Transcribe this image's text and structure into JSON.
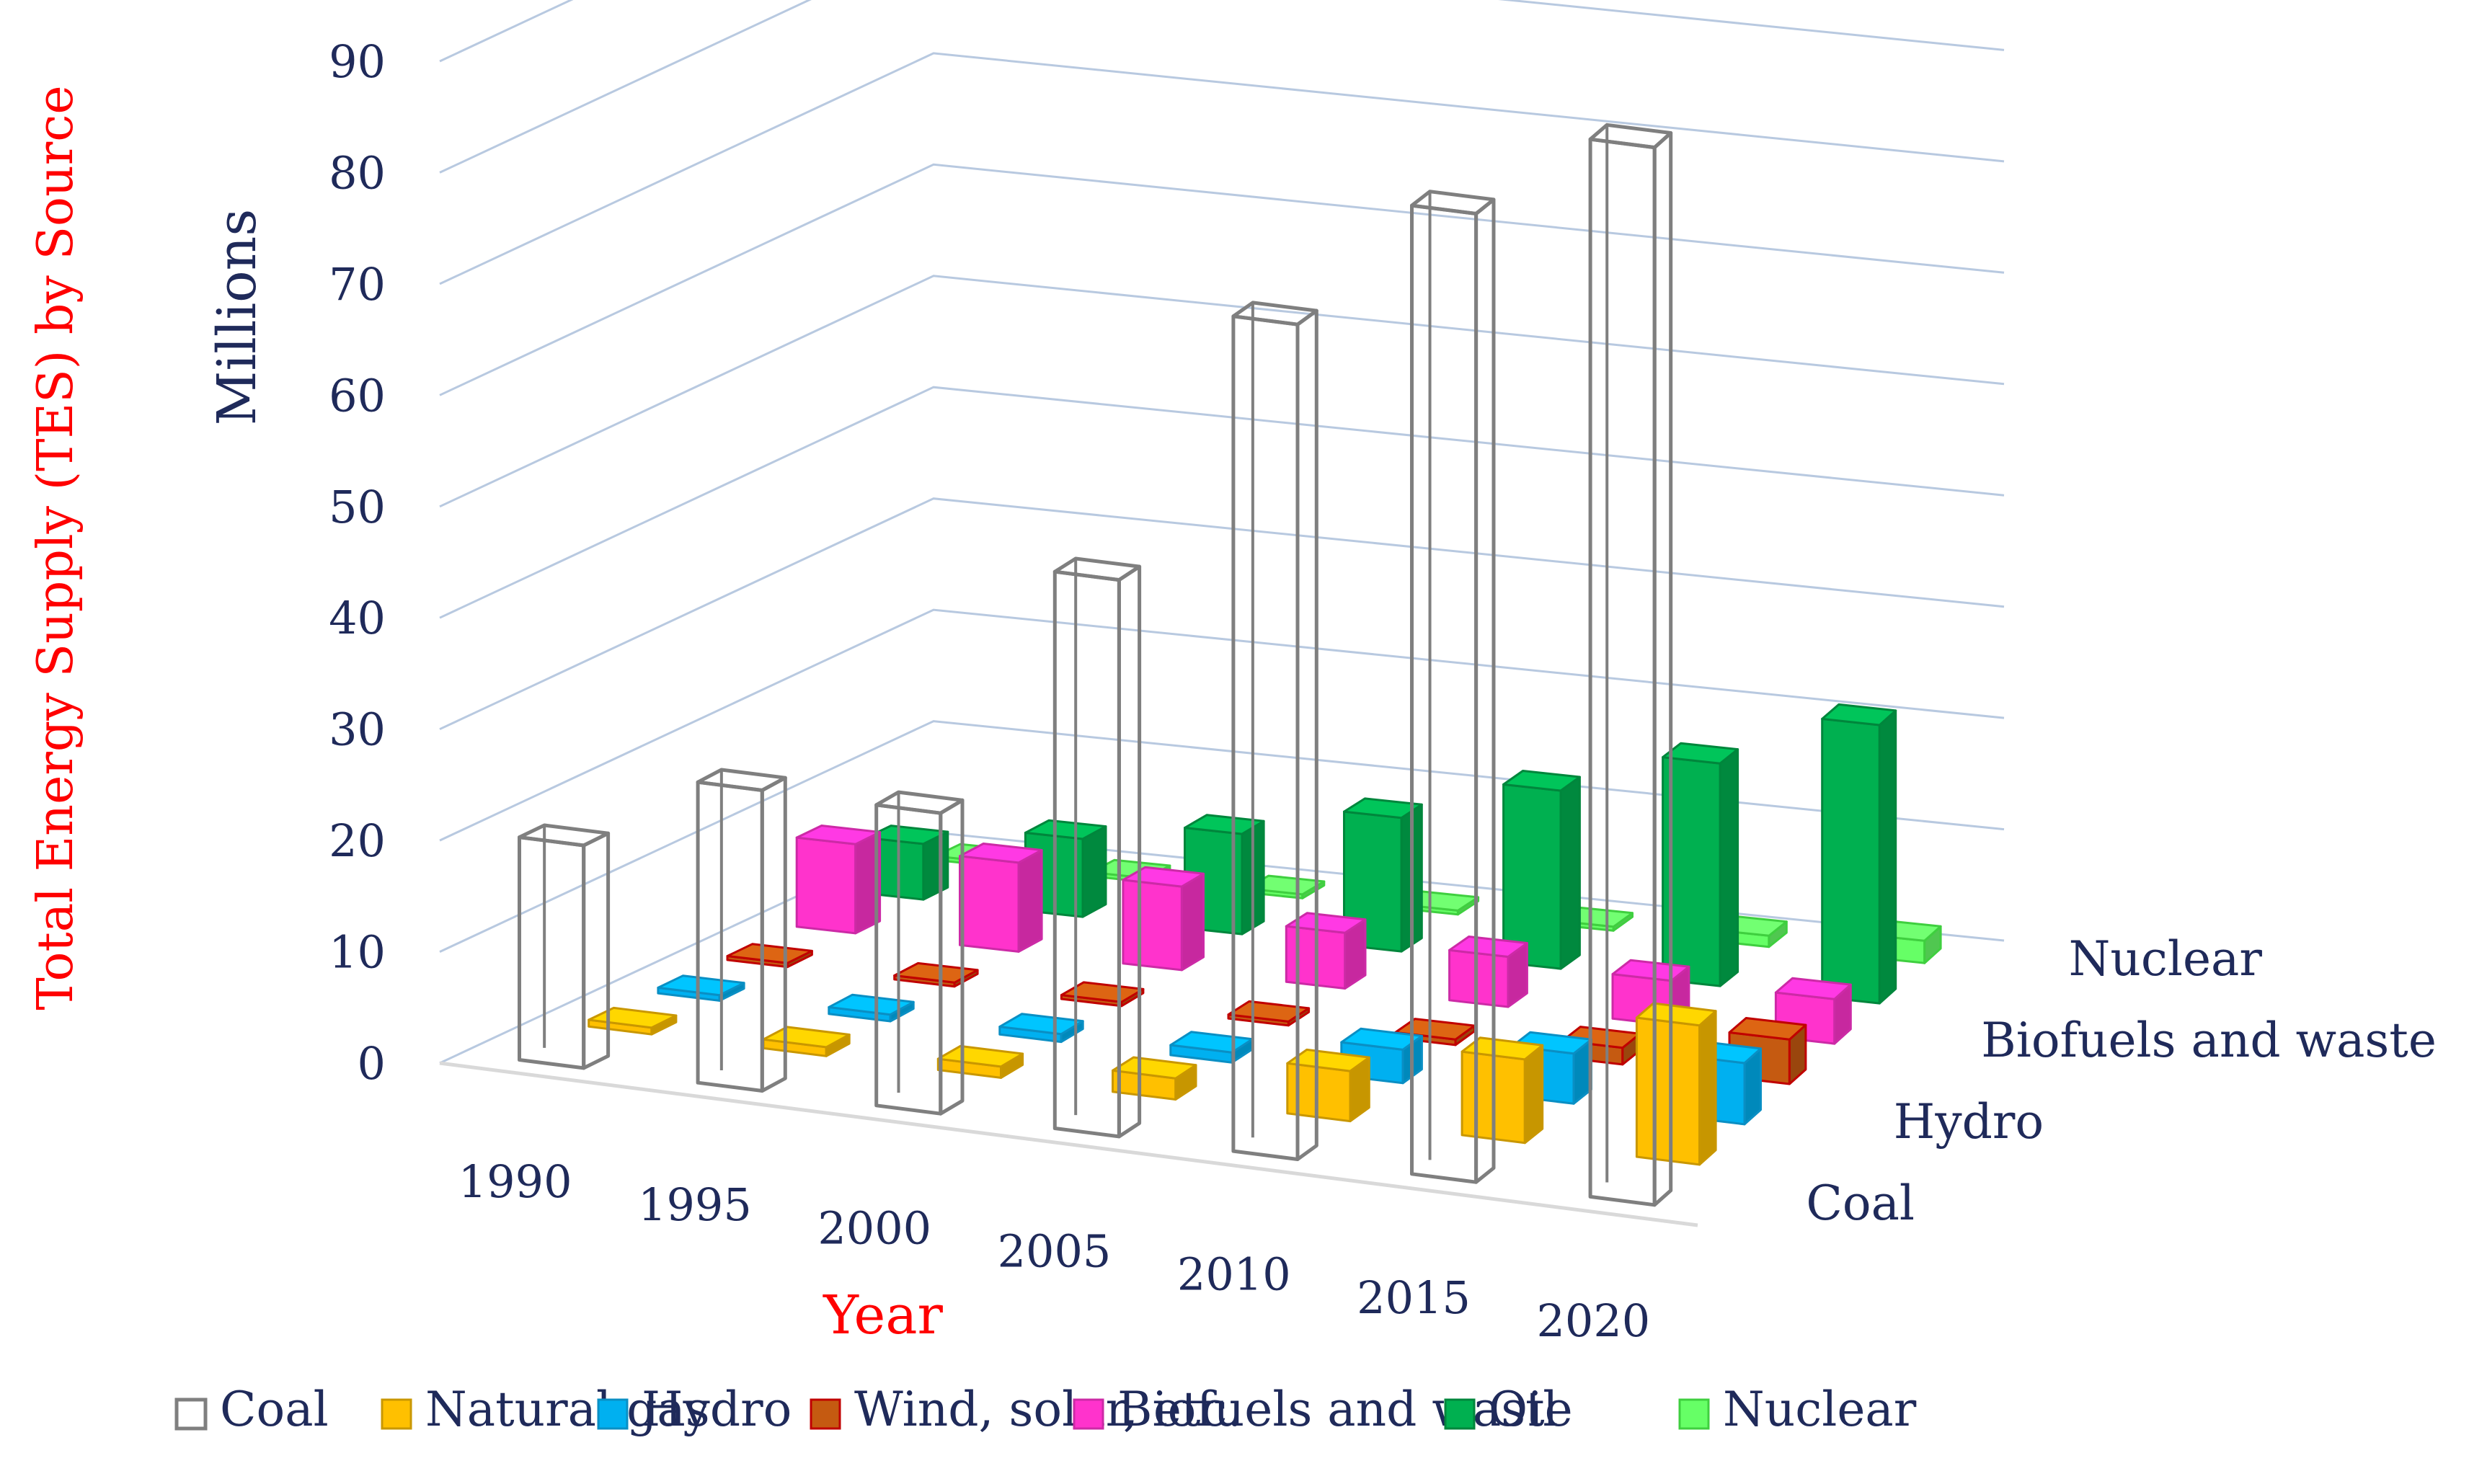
{
  "chart_data": {
    "type": "bar",
    "subtype": "3d-grouped-bar",
    "y_axis_title": "Total Energy Supply (TES) by Source",
    "units_label": "Millions",
    "x_axis_title": "Year",
    "y_ticks": [
      "0",
      "10",
      "20",
      "30",
      "40",
      "50",
      "60",
      "70",
      "80",
      "90"
    ],
    "ylim": [
      0,
      90
    ],
    "categories": [
      "1990",
      "1995",
      "2000",
      "2005",
      "2010",
      "2015",
      "2020"
    ],
    "depth_labels": [
      "Coal",
      "Hydro",
      "Biofuels and waste",
      "Nuclear"
    ],
    "series": [
      {
        "name": "Coal",
        "color": "#ffffff",
        "stroke": "#7f7f7f",
        "values": [
          20,
          27,
          27,
          50,
          75,
          87,
          95
        ]
      },
      {
        "name": "Natural gas",
        "color": "#ffc000",
        "stroke": "#c99700",
        "values": [
          0.6,
          0.8,
          1.0,
          1.9,
          4.5,
          7.5,
          12.5
        ]
      },
      {
        "name": "Hydro",
        "color": "#00b0f0",
        "stroke": "#0a8fc4",
        "values": [
          0.5,
          0.6,
          0.7,
          0.9,
          3.0,
          4.5,
          5.5
        ]
      },
      {
        "name": "Wind, solar, etc.",
        "color": "#c55a11",
        "stroke": "#c00000",
        "values": [
          0.1,
          0.1,
          0.2,
          0.3,
          0.5,
          1.5,
          4.0
        ]
      },
      {
        "name": "Biofuels and waste",
        "color": "#ff33cc",
        "stroke": "#cc2aa6",
        "values": [
          8,
          8,
          7.5,
          5,
          4.5,
          4,
          4
        ]
      },
      {
        "name": "Oil",
        "color": "#00b050",
        "stroke": "#00863c",
        "values": [
          5,
          7,
          9,
          12,
          16,
          20,
          25
        ]
      },
      {
        "name": "Nuclear",
        "color": "#66ff66",
        "stroke": "#3fcf3f",
        "values": [
          0,
          0.1,
          0.2,
          0.2,
          0.3,
          1.0,
          2.0
        ]
      }
    ]
  }
}
